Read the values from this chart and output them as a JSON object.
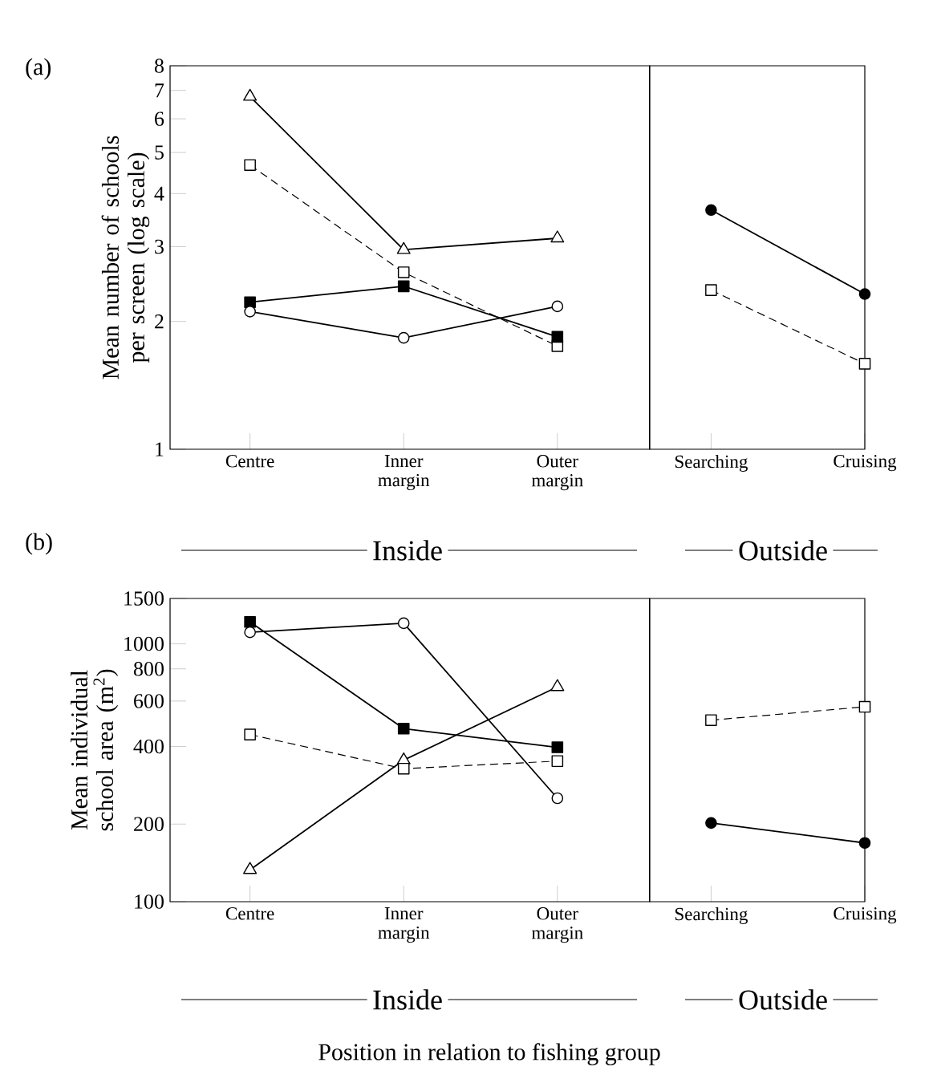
{
  "chart_data": [
    {
      "type": "line",
      "log": "y",
      "ylabel": "Mean number of schools per screen (log scale)",
      "categories": [
        "Centre",
        "Inner margin",
        "Outer margin",
        "Searching",
        "Cruising"
      ],
      "ylim": [
        1,
        8
      ],
      "yticks": [
        1,
        2,
        3,
        4,
        5,
        6,
        7,
        8
      ],
      "annotations": [
        "(a)",
        "Inside",
        "Outside"
      ],
      "series": [
        {
          "color": "#000000",
          "colors": [
            null,
            null,
            null,
            "#000000",
            "#000000"
          ],
          "marker": "circle",
          "line_style": "solid",
          "values": [
            null,
            null,
            null,
            3.66,
            2.32
          ]
        },
        {
          "color": "#000000",
          "colors": [
            "#ffffff",
            "#ffffff",
            "#ffffff",
            null,
            null
          ],
          "marker": "triangle",
          "line_style": "solid",
          "values": [
            6.77,
            2.95,
            3.14,
            null,
            null
          ]
        },
        {
          "color": "#000000",
          "colors": [
            "#ffffff",
            "#ffffff",
            "#ffffff",
            null,
            null
          ],
          "marker": "square",
          "line_style": "dashed",
          "values": [
            4.67,
            2.61,
            1.75,
            null,
            null
          ]
        },
        {
          "color": "#000000",
          "colors": [
            null,
            null,
            null,
            "#ffffff",
            "#ffffff"
          ],
          "marker": "square",
          "line_style": "dashed",
          "values": [
            null,
            null,
            null,
            2.37,
            1.59
          ]
        },
        {
          "color": "#000000",
          "colors": [
            "#000000",
            "#000000",
            "#000000",
            null,
            null
          ],
          "marker": "square",
          "line_style": "solid",
          "values": [
            2.22,
            2.42,
            1.84,
            null,
            null
          ]
        },
        {
          "color": "#000000",
          "colors": [
            "#ffffff",
            "#ffffff",
            "#ffffff",
            null,
            null
          ],
          "marker": "circle",
          "line_style": "solid",
          "values": [
            2.11,
            1.83,
            2.17,
            null,
            null
          ]
        }
      ]
    },
    {
      "type": "line",
      "log": "y",
      "ylabel": "Mean individual school area (m$^{2}$)",
      "xlabel": "Position in relation to fishing group",
      "categories": [
        "Centre",
        "Inner margin",
        "Outer margin",
        "Searching",
        "Cruising"
      ],
      "ylim": [
        100,
        1500
      ],
      "yticks": [
        100,
        200,
        400,
        600,
        800,
        1000,
        1500
      ],
      "annotations": [
        "(b)",
        "Inside",
        "Outside"
      ],
      "series": [
        {
          "color": "#000000",
          "colors": [
            null,
            null,
            null,
            "#000000",
            "#000000"
          ],
          "marker": "circle",
          "line_style": "solid",
          "values": [
            null,
            null,
            null,
            202,
            169
          ]
        },
        {
          "color": "#000000",
          "colors": [
            "#ffffff",
            "#ffffff",
            "#ffffff",
            null,
            null
          ],
          "marker": "triangle",
          "line_style": "solid",
          "values": [
            133,
            354,
            681,
            null,
            null
          ]
        },
        {
          "color": "#000000",
          "colors": [
            "#ffffff",
            "#ffffff",
            "#ffffff",
            null,
            null
          ],
          "marker": "square",
          "line_style": "dashed",
          "values": [
            445,
            328,
            351,
            null,
            null
          ]
        },
        {
          "color": "#000000",
          "colors": [
            null,
            null,
            null,
            "#ffffff",
            "#ffffff"
          ],
          "marker": "square",
          "line_style": "dashed",
          "values": [
            null,
            null,
            null,
            506,
            570
          ]
        },
        {
          "color": "#000000",
          "colors": [
            "#000000",
            "#000000",
            "#000000",
            null,
            null
          ],
          "marker": "square",
          "line_style": "solid",
          "values": [
            1216,
            469,
            397,
            null,
            null
          ]
        },
        {
          "color": "#000000",
          "colors": [
            "#ffffff",
            "#ffffff",
            "#ffffff",
            null,
            null
          ],
          "marker": "circle",
          "line_style": "solid",
          "values": [
            1109,
            1202,
            252,
            null,
            null
          ]
        }
      ]
    }
  ]
}
